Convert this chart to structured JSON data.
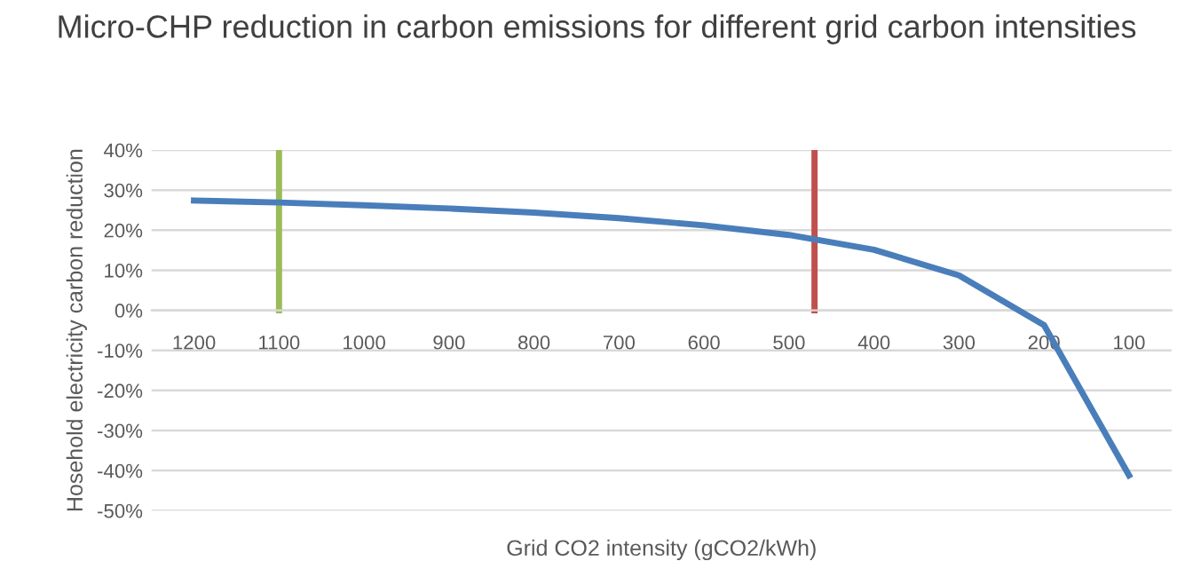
{
  "chart_data": {
    "type": "line",
    "title": "Micro-CHP reduction in carbon emissions for different grid carbon intensities",
    "xlabel": "Grid CO2 intensity (gCO2/kWh)",
    "ylabel": "Hosehold electricity carbon reduction",
    "x": [
      1200,
      1100,
      1000,
      900,
      800,
      700,
      600,
      500,
      400,
      300,
      200,
      100
    ],
    "series": [
      {
        "color": "#4a7ebb",
        "values": [
          27.4,
          26.9,
          26.2,
          25.4,
          24.4,
          23.0,
          21.2,
          18.8,
          15.1,
          8.7,
          -3.7,
          -41.2
        ]
      }
    ],
    "xlim": [
      1250,
      50
    ],
    "xticks": [
      1200,
      1100,
      1000,
      900,
      800,
      700,
      600,
      500,
      400,
      300,
      200,
      100
    ],
    "ylim": [
      -50,
      40
    ],
    "yticks": [
      {
        "value": -50,
        "label": "-50%"
      },
      {
        "value": -40,
        "label": "-40%"
      },
      {
        "value": -30,
        "label": "-30%"
      },
      {
        "value": -20,
        "label": "-20%"
      },
      {
        "value": -10,
        "label": "-10%"
      },
      {
        "value": 0,
        "label": "0%"
      },
      {
        "value": 10,
        "label": "10%"
      },
      {
        "value": 20,
        "label": "20%"
      },
      {
        "value": 30,
        "label": "30%"
      },
      {
        "value": 40,
        "label": "40%"
      }
    ],
    "ref_lines": [
      {
        "axis": "x",
        "value": 1100,
        "color": "#9bbb59"
      },
      {
        "axis": "x",
        "value": 470,
        "color": "#c0504d"
      }
    ],
    "grid": "y",
    "marker": "none",
    "line_style": "solid"
  }
}
